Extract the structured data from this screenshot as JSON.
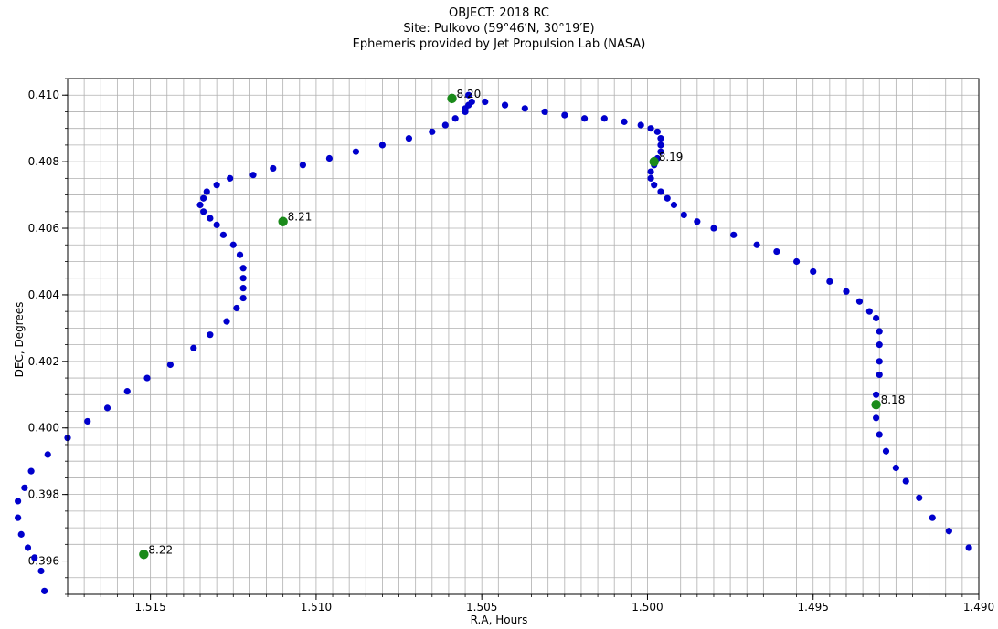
{
  "chart_data": {
    "type": "scatter",
    "title_lines": [
      "OBJECT: 2018 RC",
      "Site: Pulkovo (59°46′N,  30°19′E)",
      "Ephemeris provided by Jet Propulsion Lab (NASA)"
    ],
    "xlabel": "R.A, Hours",
    "ylabel": "DEC, Degrees",
    "xlim": [
      1.5175,
      1.49
    ],
    "ylim": [
      0.395,
      0.4105
    ],
    "x_inverted": true,
    "xticks": [
      1.515,
      1.51,
      1.505,
      1.5,
      1.495,
      1.49
    ],
    "xtick_labels": [
      "1.515",
      "1.510",
      "1.505",
      "1.500",
      "1.495",
      "1.490"
    ],
    "yticks": [
      0.396,
      0.398,
      0.4,
      0.402,
      0.404,
      0.406,
      0.408,
      0.41
    ],
    "ytick_labels": [
      "0.396",
      "0.398",
      "0.400",
      "0.402",
      "0.404",
      "0.406",
      "0.408",
      "0.410"
    ],
    "grid": true,
    "colors": {
      "track": "#0000cc",
      "marker": "#1a8a1a",
      "grid": "#b0b0b0"
    },
    "series": [
      {
        "role": "track",
        "points": [
          [
            1.4903,
            0.3964
          ],
          [
            1.4909,
            0.3969
          ],
          [
            1.4914,
            0.3973
          ],
          [
            1.4918,
            0.3979
          ],
          [
            1.4922,
            0.3984
          ],
          [
            1.4925,
            0.3988
          ],
          [
            1.4928,
            0.3993
          ],
          [
            1.493,
            0.3998
          ],
          [
            1.4931,
            0.4003
          ],
          [
            1.4931,
            0.401
          ],
          [
            1.493,
            0.4016
          ],
          [
            1.493,
            0.402
          ],
          [
            1.493,
            0.4025
          ],
          [
            1.493,
            0.4029
          ],
          [
            1.4931,
            0.4033
          ],
          [
            1.4933,
            0.4035
          ],
          [
            1.4936,
            0.4038
          ],
          [
            1.494,
            0.4041
          ],
          [
            1.4945,
            0.4044
          ],
          [
            1.495,
            0.4047
          ],
          [
            1.4955,
            0.405
          ],
          [
            1.4961,
            0.4053
          ],
          [
            1.4967,
            0.4055
          ],
          [
            1.4974,
            0.4058
          ],
          [
            1.498,
            0.406
          ],
          [
            1.4985,
            0.4062
          ],
          [
            1.4989,
            0.4064
          ],
          [
            1.4992,
            0.4067
          ],
          [
            1.4994,
            0.4069
          ],
          [
            1.4996,
            0.4071
          ],
          [
            1.4998,
            0.4073
          ],
          [
            1.4999,
            0.4075
          ],
          [
            1.4999,
            0.4077
          ],
          [
            1.4998,
            0.4079
          ],
          [
            1.4997,
            0.4081
          ],
          [
            1.4996,
            0.4083
          ],
          [
            1.4996,
            0.4085
          ],
          [
            1.4996,
            0.4087
          ],
          [
            1.4997,
            0.4089
          ],
          [
            1.4999,
            0.409
          ],
          [
            1.5002,
            0.4091
          ],
          [
            1.5007,
            0.4092
          ],
          [
            1.5013,
            0.4093
          ],
          [
            1.5019,
            0.4093
          ],
          [
            1.5025,
            0.4094
          ],
          [
            1.5031,
            0.4095
          ],
          [
            1.5037,
            0.4096
          ],
          [
            1.5043,
            0.4097
          ],
          [
            1.5049,
            0.4098
          ],
          [
            1.5053,
            0.4098
          ],
          [
            1.5055,
            0.4095
          ],
          [
            1.5054,
            0.4097
          ],
          [
            1.5054,
            0.41
          ],
          [
            1.5055,
            0.4096
          ],
          [
            1.5058,
            0.4093
          ],
          [
            1.5061,
            0.4091
          ],
          [
            1.5065,
            0.4089
          ],
          [
            1.5072,
            0.4087
          ],
          [
            1.508,
            0.4085
          ],
          [
            1.5088,
            0.4083
          ],
          [
            1.5096,
            0.4081
          ],
          [
            1.5104,
            0.4079
          ],
          [
            1.5113,
            0.4078
          ],
          [
            1.5119,
            0.4076
          ],
          [
            1.5126,
            0.4075
          ],
          [
            1.513,
            0.4073
          ],
          [
            1.5133,
            0.4071
          ],
          [
            1.5134,
            0.4069
          ],
          [
            1.5135,
            0.4067
          ],
          [
            1.5134,
            0.4065
          ],
          [
            1.5132,
            0.4063
          ],
          [
            1.513,
            0.4061
          ],
          [
            1.5128,
            0.4058
          ],
          [
            1.5125,
            0.4055
          ],
          [
            1.5123,
            0.4052
          ],
          [
            1.5122,
            0.4048
          ],
          [
            1.5122,
            0.4045
          ],
          [
            1.5122,
            0.4042
          ],
          [
            1.5122,
            0.4039
          ],
          [
            1.5124,
            0.4036
          ],
          [
            1.5127,
            0.4032
          ],
          [
            1.5132,
            0.4028
          ],
          [
            1.5137,
            0.4024
          ],
          [
            1.5144,
            0.4019
          ],
          [
            1.5151,
            0.4015
          ],
          [
            1.5157,
            0.4011
          ],
          [
            1.5163,
            0.4006
          ],
          [
            1.5169,
            0.4002
          ],
          [
            1.5175,
            0.3997
          ],
          [
            1.5181,
            0.3992
          ],
          [
            1.5186,
            0.3987
          ],
          [
            1.5188,
            0.3982
          ],
          [
            1.519,
            0.3978
          ],
          [
            1.519,
            0.3973
          ],
          [
            1.5189,
            0.3968
          ],
          [
            1.5187,
            0.3964
          ],
          [
            1.5185,
            0.3961
          ],
          [
            1.5183,
            0.3957
          ],
          [
            1.5182,
            0.3951
          ]
        ]
      },
      {
        "role": "markers",
        "points": [
          {
            "x": 1.4931,
            "y": 0.4007,
            "label": "8.18"
          },
          {
            "x": 1.4998,
            "y": 0.408,
            "label": "8.19"
          },
          {
            "x": 1.5059,
            "y": 0.4099,
            "label": "8.20"
          },
          {
            "x": 1.511,
            "y": 0.4062,
            "label": "8.21"
          },
          {
            "x": 1.5152,
            "y": 0.3962,
            "label": "8.22"
          }
        ]
      }
    ]
  }
}
